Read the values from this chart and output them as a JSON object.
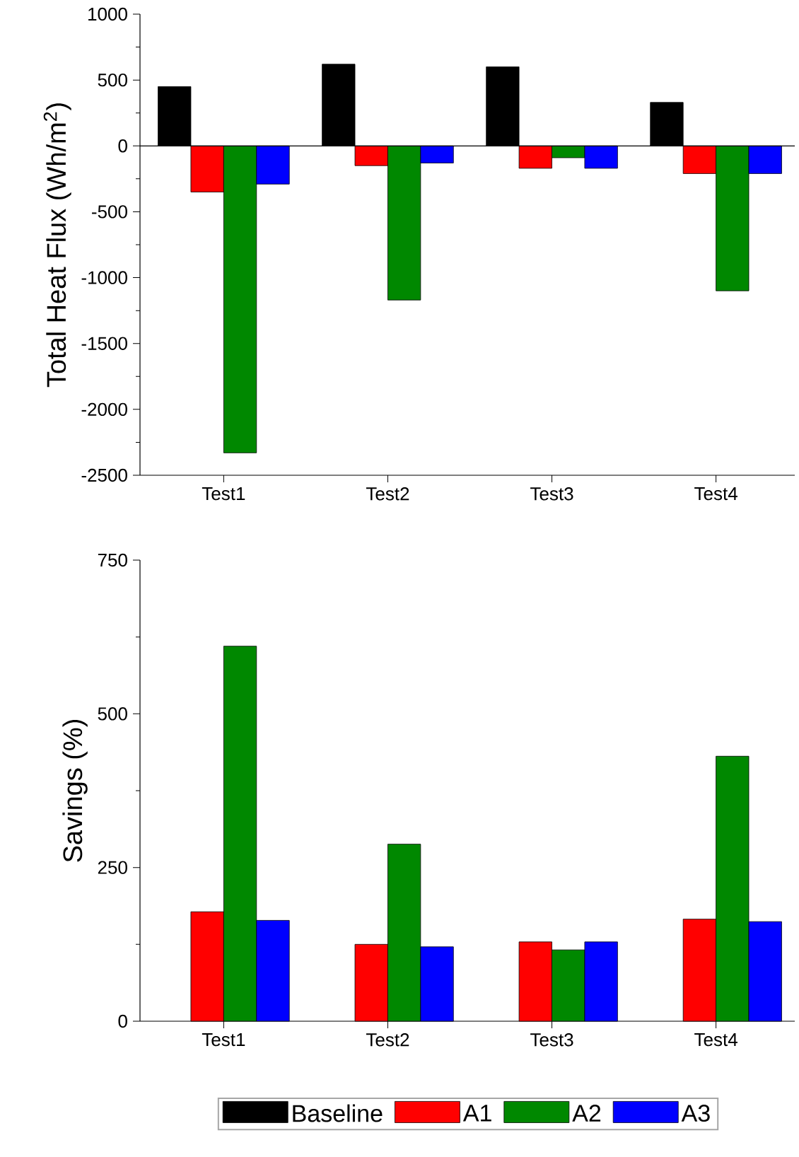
{
  "chart_data": [
    {
      "type": "bar",
      "ylabel": "Total Heat Flux (Wh/m$^{2}$)",
      "categories": [
        "Test1",
        "Test2",
        "Test3",
        "Test4"
      ],
      "series": [
        {
          "name": "Baseline",
          "color": "#000000",
          "values": [
            450,
            620,
            600,
            330
          ]
        },
        {
          "name": "A1",
          "color": "#ff0000",
          "values": [
            -350,
            -150,
            -170,
            -210
          ]
        },
        {
          "name": "A2",
          "color": "#008800",
          "values": [
            -2330,
            -1170,
            -90,
            -1100
          ]
        },
        {
          "name": "A3",
          "color": "#0000ff",
          "values": [
            -290,
            -130,
            -170,
            -210
          ]
        }
      ],
      "ylim": [
        -2500,
        1000
      ],
      "yticks": [
        -2500,
        -2000,
        -1500,
        -1000,
        -500,
        0,
        500,
        1000
      ],
      "ref_lines": [
        {
          "axis": "y",
          "value": 0,
          "color": "#000000"
        }
      ],
      "grid": false,
      "legend": "bottom"
    },
    {
      "type": "bar",
      "ylabel": "Savings (%)",
      "categories": [
        "Test1",
        "Test2",
        "Test3",
        "Test4"
      ],
      "series": [
        {
          "color": "#000000",
          "values": [
            null,
            null,
            null,
            null
          ]
        },
        {
          "color": "#ff0000",
          "values": [
            178,
            125,
            129,
            166
          ]
        },
        {
          "color": "#008800",
          "values": [
            610,
            288,
            116,
            431
          ]
        },
        {
          "color": "#0000ff",
          "values": [
            164,
            121,
            129,
            162
          ]
        }
      ],
      "ylim": [
        0,
        750
      ],
      "yticks": [
        0,
        250,
        500,
        750
      ],
      "grid": false,
      "legend": false
    }
  ]
}
